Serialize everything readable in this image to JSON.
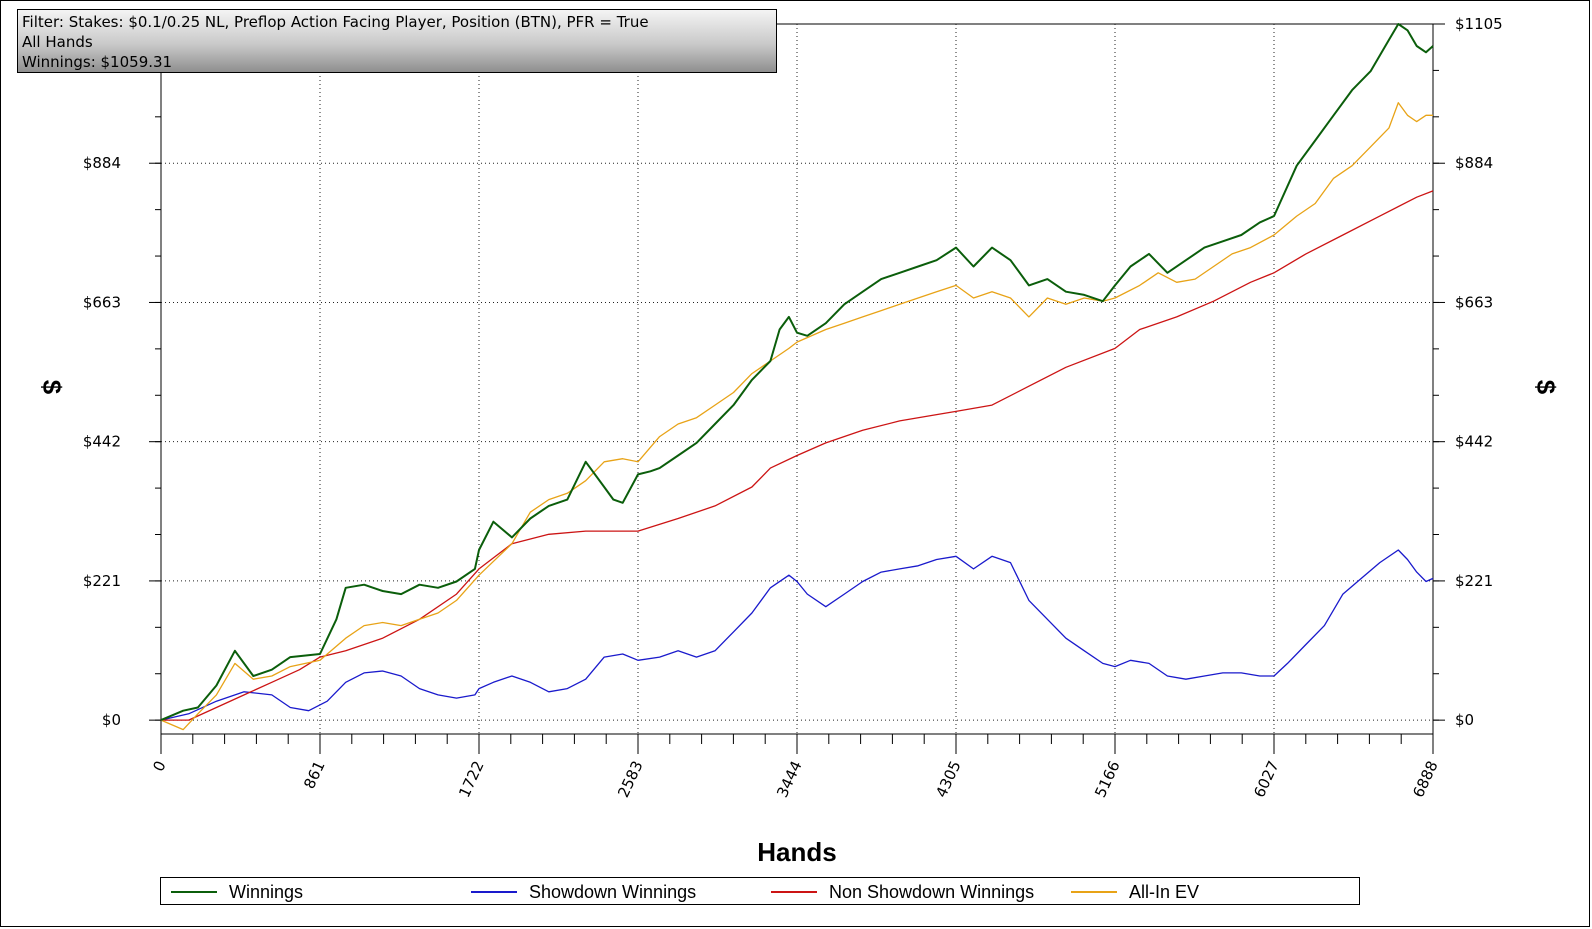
{
  "filter": {
    "line1": "Filter: Stakes: $0.1/0.25 NL, Preflop Action Facing Player, Position (BTN), PFR = True",
    "line2": "All Hands",
    "line3": "Winnings: $1059.31"
  },
  "chart_data": {
    "type": "line",
    "title": "",
    "xlabel": "Hands",
    "ylabel": "$",
    "xlim": [
      0,
      6888
    ],
    "ylim": [
      -22,
      1105
    ],
    "xticks": [
      0,
      861,
      1722,
      2583,
      3444,
      4305,
      5166,
      6027,
      6888
    ],
    "yticks": [
      0,
      221,
      442,
      663,
      884,
      1105
    ],
    "ytick_labels": [
      "$0",
      "$221",
      "$442",
      "$663",
      "$884",
      "$1105"
    ],
    "grid": true,
    "legend_position": "bottom",
    "series": [
      {
        "name": "Winnings",
        "color": "#0b5e0b",
        "x": [
          0,
          120,
          200,
          300,
          400,
          500,
          600,
          700,
          861,
          950,
          1000,
          1100,
          1200,
          1300,
          1400,
          1500,
          1600,
          1700,
          1722,
          1800,
          1900,
          2000,
          2100,
          2200,
          2300,
          2400,
          2450,
          2500,
          2583,
          2650,
          2700,
          2800,
          2900,
          3000,
          3100,
          3200,
          3300,
          3350,
          3400,
          3444,
          3500,
          3600,
          3700,
          3800,
          3900,
          4000,
          4100,
          4200,
          4305,
          4400,
          4500,
          4600,
          4700,
          4800,
          4900,
          5000,
          5100,
          5166,
          5250,
          5350,
          5450,
          5550,
          5650,
          5750,
          5850,
          5950,
          6027,
          6150,
          6250,
          6350,
          6450,
          6550,
          6650,
          6700,
          6750,
          6800,
          6850,
          6888
        ],
        "values": [
          0,
          15,
          20,
          55,
          110,
          70,
          80,
          100,
          105,
          160,
          210,
          215,
          205,
          200,
          215,
          210,
          220,
          240,
          270,
          315,
          290,
          320,
          340,
          350,
          410,
          370,
          350,
          345,
          390,
          395,
          400,
          420,
          440,
          470,
          500,
          540,
          570,
          620,
          640,
          615,
          610,
          630,
          660,
          680,
          700,
          710,
          720,
          730,
          750,
          720,
          750,
          730,
          690,
          700,
          680,
          675,
          665,
          690,
          720,
          740,
          710,
          730,
          750,
          760,
          770,
          790,
          800,
          880,
          920,
          960,
          1000,
          1030,
          1080,
          1105,
          1095,
          1070,
          1060,
          1070
        ]
      },
      {
        "name": "Showdown Winnings",
        "color": "#1a1acc",
        "x": [
          0,
          150,
          300,
          450,
          600,
          700,
          800,
          900,
          1000,
          1100,
          1200,
          1300,
          1400,
          1500,
          1600,
          1700,
          1722,
          1800,
          1900,
          2000,
          2100,
          2200,
          2300,
          2400,
          2500,
          2583,
          2700,
          2800,
          2900,
          3000,
          3100,
          3200,
          3300,
          3400,
          3444,
          3500,
          3600,
          3700,
          3800,
          3900,
          4000,
          4100,
          4200,
          4305,
          4400,
          4500,
          4600,
          4700,
          4800,
          4900,
          5000,
          5100,
          5166,
          5250,
          5350,
          5450,
          5550,
          5650,
          5750,
          5850,
          5950,
          6027,
          6100,
          6200,
          6300,
          6400,
          6500,
          6600,
          6700,
          6750,
          6800,
          6850,
          6888
        ],
        "values": [
          0,
          10,
          30,
          45,
          40,
          20,
          15,
          30,
          60,
          75,
          78,
          70,
          50,
          40,
          35,
          40,
          50,
          60,
          70,
          60,
          45,
          50,
          65,
          100,
          105,
          95,
          100,
          110,
          100,
          110,
          140,
          170,
          210,
          230,
          220,
          200,
          180,
          200,
          220,
          235,
          240,
          245,
          255,
          260,
          240,
          260,
          250,
          190,
          160,
          130,
          110,
          90,
          85,
          95,
          90,
          70,
          65,
          70,
          75,
          75,
          70,
          70,
          90,
          120,
          150,
          200,
          225,
          250,
          270,
          255,
          235,
          220,
          225
        ]
      },
      {
        "name": "Non Showdown Winnings",
        "color": "#cc1414",
        "x": [
          0,
          150,
          300,
          450,
          600,
          750,
          861,
          1000,
          1200,
          1400,
          1600,
          1722,
          1900,
          2100,
          2300,
          2500,
          2583,
          2800,
          3000,
          3200,
          3300,
          3444,
          3600,
          3800,
          4000,
          4200,
          4305,
          4500,
          4700,
          4900,
          5166,
          5300,
          5500,
          5700,
          5900,
          6027,
          6200,
          6400,
          6600,
          6800,
          6888
        ],
        "values": [
          0,
          0,
          20,
          40,
          60,
          80,
          100,
          110,
          130,
          160,
          200,
          240,
          280,
          295,
          300,
          300,
          300,
          320,
          340,
          370,
          400,
          420,
          440,
          460,
          475,
          485,
          490,
          500,
          530,
          560,
          590,
          620,
          640,
          665,
          695,
          710,
          740,
          770,
          800,
          830,
          840
        ]
      },
      {
        "name": "All-In EV",
        "color": "#e8a317",
        "x": [
          0,
          120,
          200,
          300,
          400,
          500,
          600,
          700,
          861,
          1000,
          1100,
          1200,
          1300,
          1400,
          1500,
          1600,
          1722,
          1900,
          2000,
          2100,
          2200,
          2300,
          2400,
          2500,
          2583,
          2700,
          2800,
          2900,
          3000,
          3100,
          3200,
          3300,
          3400,
          3444,
          3600,
          3700,
          3800,
          3900,
          4000,
          4100,
          4200,
          4305,
          4400,
          4500,
          4600,
          4700,
          4800,
          4900,
          5000,
          5100,
          5166,
          5300,
          5400,
          5500,
          5600,
          5700,
          5800,
          5900,
          6027,
          6150,
          6250,
          6350,
          6450,
          6550,
          6650,
          6700,
          6750,
          6800,
          6850,
          6888
        ],
        "values": [
          0,
          -15,
          10,
          40,
          90,
          65,
          70,
          85,
          95,
          130,
          150,
          155,
          150,
          160,
          170,
          190,
          230,
          280,
          330,
          350,
          360,
          380,
          410,
          415,
          410,
          450,
          470,
          480,
          500,
          520,
          550,
          570,
          590,
          600,
          620,
          630,
          640,
          650,
          660,
          670,
          680,
          690,
          670,
          680,
          670,
          640,
          670,
          660,
          670,
          665,
          670,
          690,
          710,
          695,
          700,
          720,
          740,
          750,
          770,
          800,
          820,
          860,
          880,
          910,
          940,
          980,
          960,
          950,
          960,
          960
        ]
      }
    ]
  },
  "legend": {
    "items": [
      {
        "label": "Winnings",
        "color": "#0b5e0b"
      },
      {
        "label": "Showdown Winnings",
        "color": "#1a1acc"
      },
      {
        "label": "Non Showdown Winnings",
        "color": "#cc1414"
      },
      {
        "label": "All-In EV",
        "color": "#e8a317"
      }
    ]
  }
}
